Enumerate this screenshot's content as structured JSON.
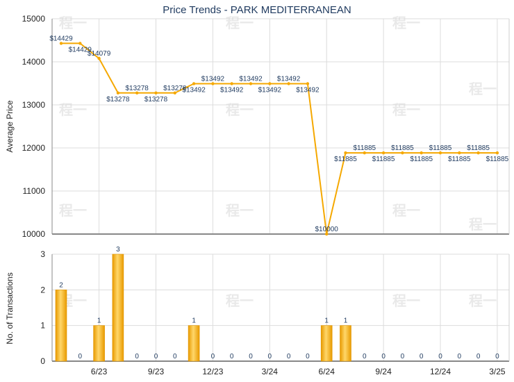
{
  "chart_data": [
    {
      "type": "line",
      "title": "Price Trends - PARK MEDITERRANEAN",
      "ylabel": "Average Price",
      "ylim": [
        10000,
        15000
      ],
      "yticks": [
        "10000",
        "11000",
        "12000",
        "13000",
        "14000",
        "15000"
      ],
      "grid": true,
      "x": [
        "2023-04",
        "2023-05",
        "2023-06",
        "2023-07",
        "2023-08",
        "2023-09",
        "2023-10",
        "2023-11",
        "2023-12",
        "2024-01",
        "2024-02",
        "2024-03",
        "2024-04",
        "2024-05",
        "2024-06",
        "2024-07",
        "2024-08",
        "2024-09",
        "2024-10",
        "2024-11",
        "2024-12",
        "2025-01",
        "2025-02",
        "2025-03"
      ],
      "values": [
        14429,
        14429,
        14079,
        13278,
        13278,
        13278,
        13278,
        13492,
        13492,
        13492,
        13492,
        13492,
        13492,
        13492,
        10000,
        11885,
        11885,
        11885,
        11885,
        11885,
        11885,
        11885,
        11885,
        11885
      ],
      "data_labels": [
        "$14429",
        "$14429",
        "$14079",
        "$13278",
        "$13278",
        "$13278",
        "$13278",
        "$13492",
        "$13492",
        "$13492",
        "$13492",
        "$13492",
        "$13492",
        "$13492",
        "$10000",
        "$11885",
        "$11885",
        "$11885",
        "$11885",
        "$11885",
        "$11885",
        "$11885",
        "$11885",
        "$11885"
      ],
      "color": "#f5a800"
    },
    {
      "type": "bar",
      "ylabel": "No. of Transactions",
      "ylim": [
        0,
        3
      ],
      "yticks": [
        "0",
        "1",
        "2",
        "3"
      ],
      "grid": true,
      "x": [
        "2023-04",
        "2023-05",
        "2023-06",
        "2023-07",
        "2023-08",
        "2023-09",
        "2023-10",
        "2023-11",
        "2023-12",
        "2024-01",
        "2024-02",
        "2024-03",
        "2024-04",
        "2024-05",
        "2024-06",
        "2024-07",
        "2024-08",
        "2024-09",
        "2024-10",
        "2024-11",
        "2024-12",
        "2025-01",
        "2025-02",
        "2025-03"
      ],
      "values": [
        2,
        0,
        1,
        3,
        0,
        0,
        0,
        1,
        0,
        0,
        0,
        0,
        0,
        0,
        1,
        1,
        0,
        0,
        0,
        0,
        0,
        0,
        0,
        0
      ],
      "xtick_labels": [
        "6/23",
        "9/23",
        "12/23",
        "3/24",
        "6/24",
        "9/24",
        "12/24",
        "3/25"
      ],
      "xtick_index": [
        2,
        5,
        8,
        11,
        14,
        17,
        20,
        23
      ],
      "color": "#f5a800"
    }
  ],
  "watermark": "程一"
}
